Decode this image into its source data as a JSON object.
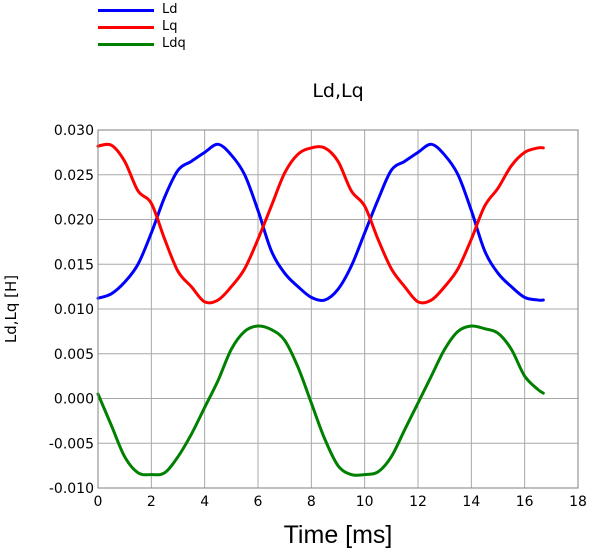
{
  "chart_data": {
    "type": "line",
    "title": "Ld,Lq",
    "xlabel": "Time [ms]",
    "ylabel": "Ld,Lq [H]",
    "xlim": [
      0,
      18
    ],
    "ylim": [
      -0.01,
      0.03
    ],
    "xticks": [
      "0",
      "2",
      "4",
      "6",
      "8",
      "10",
      "12",
      "14",
      "16",
      "18"
    ],
    "yticks": [
      "-0.010",
      "-0.005",
      "0.000",
      "0.005",
      "0.010",
      "0.015",
      "0.020",
      "0.025",
      "0.030"
    ],
    "grid": true,
    "legend_position": "top-left, above plot",
    "series": [
      {
        "name": "Ld",
        "color": "#0000ff",
        "x": [
          0,
          0.5,
          1,
          1.5,
          2,
          2.5,
          3,
          3.5,
          4,
          4.5,
          5,
          5.5,
          6,
          6.5,
          7,
          7.5,
          8,
          8.5,
          9,
          9.5,
          10,
          10.5,
          11,
          11.5,
          12,
          12.5,
          13,
          13.5,
          14,
          14.5,
          15,
          15.5,
          16,
          16.5,
          16.7
        ],
        "y": [
          0.0112,
          0.0117,
          0.013,
          0.015,
          0.0185,
          0.0225,
          0.0255,
          0.0265,
          0.0275,
          0.0284,
          0.0272,
          0.025,
          0.021,
          0.0165,
          0.014,
          0.0125,
          0.0113,
          0.011,
          0.0122,
          0.0148,
          0.0185,
          0.0222,
          0.0255,
          0.0265,
          0.0275,
          0.0284,
          0.0272,
          0.025,
          0.021,
          0.0165,
          0.014,
          0.0125,
          0.0113,
          0.011,
          0.011
        ]
      },
      {
        "name": "Lq",
        "color": "#ff0000",
        "x": [
          0,
          0.5,
          1,
          1.5,
          2,
          2.5,
          3,
          3.5,
          4,
          4.5,
          5,
          5.5,
          6,
          6.5,
          7,
          7.5,
          8,
          8.5,
          9,
          9.5,
          10,
          10.5,
          11,
          11.5,
          12,
          12.5,
          13,
          13.5,
          14,
          14.5,
          15,
          15.5,
          16,
          16.5,
          16.7
        ],
        "y": [
          0.0282,
          0.0283,
          0.0265,
          0.0232,
          0.0218,
          0.0178,
          0.0142,
          0.0125,
          0.0108,
          0.011,
          0.0125,
          0.0145,
          0.0178,
          0.0215,
          0.0252,
          0.0273,
          0.028,
          0.028,
          0.0265,
          0.0232,
          0.0215,
          0.0178,
          0.0145,
          0.0125,
          0.0108,
          0.011,
          0.0125,
          0.0145,
          0.0178,
          0.0215,
          0.0235,
          0.026,
          0.0275,
          0.028,
          0.028
        ]
      },
      {
        "name": "Ldq",
        "color": "#008000",
        "x": [
          0,
          0.5,
          1,
          1.5,
          2,
          2.5,
          3,
          3.5,
          4,
          4.5,
          5,
          5.5,
          6,
          6.5,
          7,
          7.5,
          8,
          8.5,
          9,
          9.5,
          10,
          10.5,
          11,
          11.5,
          12,
          12.5,
          13,
          13.5,
          14,
          14.5,
          15,
          15.5,
          16,
          16.5,
          16.7
        ],
        "y": [
          0.0005,
          -0.003,
          -0.0065,
          -0.0083,
          -0.0085,
          -0.0083,
          -0.0065,
          -0.004,
          -0.001,
          0.002,
          0.0055,
          0.0075,
          0.0081,
          0.0077,
          0.0065,
          0.0035,
          -0.0005,
          -0.0045,
          -0.0075,
          -0.0085,
          -0.0085,
          -0.0082,
          -0.0065,
          -0.0035,
          -0.0005,
          0.0025,
          0.0055,
          0.0075,
          0.0081,
          0.0078,
          0.0073,
          0.0055,
          0.0025,
          0.001,
          0.0006
        ]
      }
    ]
  }
}
